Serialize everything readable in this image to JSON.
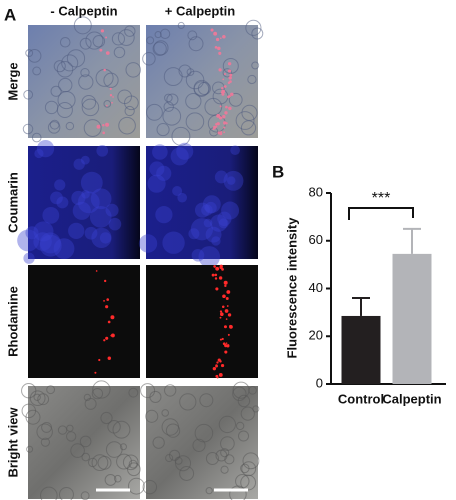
{
  "panel_a": {
    "label": "A",
    "columns": [
      "- Calpeptin",
      "+ Calpeptin"
    ],
    "rows": [
      "Merge",
      "Coumarin",
      "Rhodamine",
      "Bright view"
    ]
  },
  "chart_data": {
    "type": "bar",
    "panel_label": "B",
    "ylabel": "Fluorescence intensity",
    "categories": [
      "Control",
      "Calpeptin"
    ],
    "values": [
      28.5,
      54.5
    ],
    "errors": [
      7.5,
      10.5
    ],
    "colors": [
      "#231f20",
      "#b3b4b8"
    ],
    "ylim": [
      0,
      80
    ],
    "yticks": [
      0,
      20,
      40,
      60,
      80
    ],
    "annotation": "***"
  }
}
